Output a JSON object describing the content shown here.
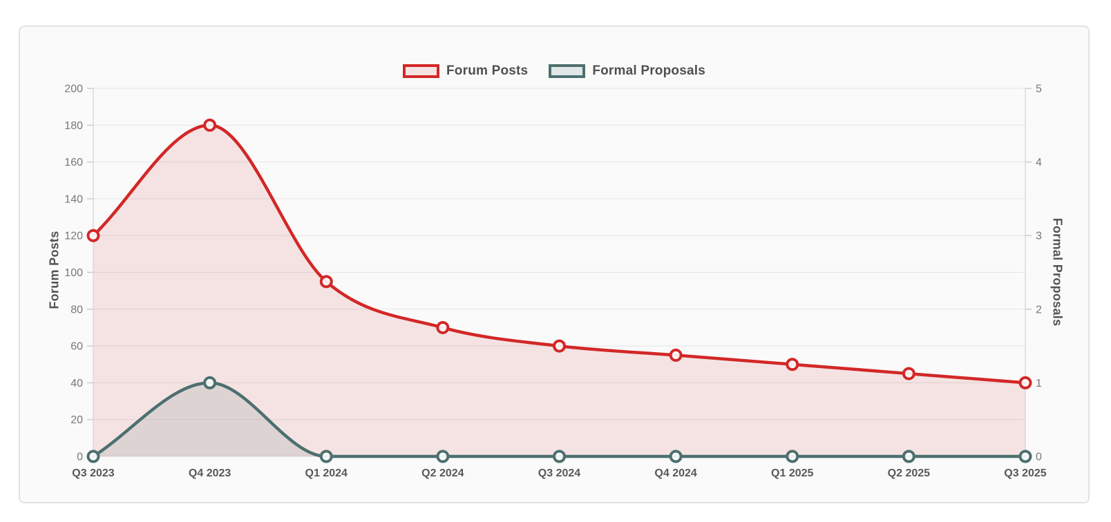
{
  "chart_data": {
    "type": "line",
    "categories": [
      "Q3 2023",
      "Q4 2023",
      "Q1 2024",
      "Q2 2024",
      "Q3 2024",
      "Q4 2024",
      "Q1 2025",
      "Q2 2025",
      "Q3 2025"
    ],
    "series": [
      {
        "name": "Forum Posts",
        "axis": "left",
        "values": [
          120,
          180,
          95,
          70,
          60,
          55,
          50,
          45,
          40
        ],
        "color": "#d32727",
        "fill_color": "rgba(211, 45, 45, 0.11)"
      },
      {
        "name": "Formal Proposals",
        "axis": "right",
        "values": [
          0,
          1,
          0,
          0,
          0,
          0,
          0,
          0,
          0
        ],
        "color": "#4d6f6f",
        "fill_color": "rgba(77, 111, 111, 0.14)"
      }
    ],
    "left_axis": {
      "label": "Forum Posts",
      "min": 0,
      "max": 200,
      "ticks": [
        0,
        20,
        40,
        60,
        80,
        100,
        120,
        140,
        160,
        180,
        200
      ]
    },
    "right_axis": {
      "label": "Formal Proposals",
      "min": 0,
      "max": 5,
      "ticks": [
        0,
        1,
        2,
        3,
        4,
        5
      ]
    },
    "legend_position": "top",
    "grid": true,
    "line_style": "smooth-monotone",
    "area_fill": true
  },
  "style": {
    "page_bg": "#ffffff",
    "card_bg": "#fafafa",
    "card_border": "#e3e3e3",
    "grid_color": "#e8e8e8",
    "axis_border_color": "#d9d9d9",
    "tick_mark_color": "#cccccc",
    "tick_text_color": "#77777a",
    "category_text_color": "#58585a",
    "title_text_color": "#525255",
    "point_fill": "#ffffff"
  }
}
